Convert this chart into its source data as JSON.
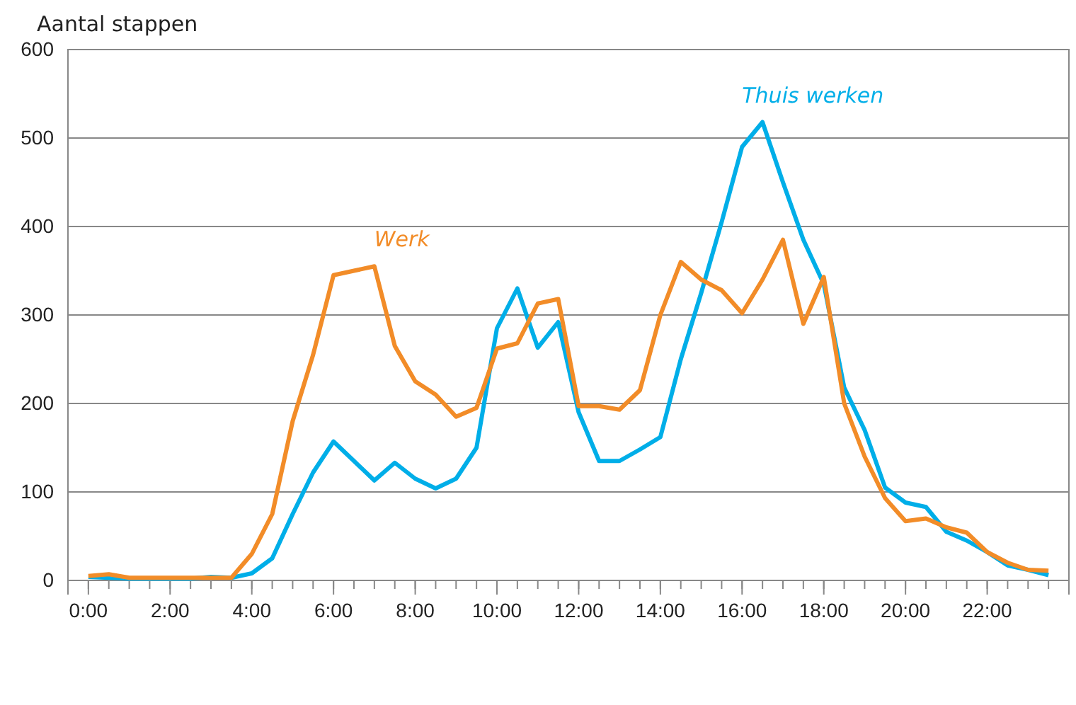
{
  "chart_data": {
    "type": "line",
    "ylabel": "Aantal stappen",
    "x": [
      0,
      0.5,
      1,
      1.5,
      2,
      2.5,
      3,
      3.5,
      4,
      4.5,
      5,
      5.5,
      6,
      6.5,
      7,
      7.5,
      8,
      8.5,
      9,
      9.5,
      10,
      10.5,
      11,
      11.5,
      12,
      12.5,
      13,
      13.5,
      14,
      14.5,
      15,
      15.5,
      16,
      16.5,
      17,
      17.5,
      18,
      18.5,
      19,
      19.5,
      20,
      20.5,
      21,
      21.5,
      22,
      22.5,
      23,
      23.5
    ],
    "series": [
      {
        "name": "Thuis werken",
        "color": "#00aee8",
        "values": [
          4,
          3,
          2,
          2,
          2,
          2,
          4,
          3,
          8,
          25,
          75,
          122,
          157,
          135,
          113,
          133,
          115,
          104,
          115,
          150,
          285,
          330,
          263,
          292,
          190,
          135,
          135,
          148,
          162,
          250,
          325,
          405,
          490,
          518,
          450,
          385,
          335,
          218,
          170,
          105,
          88,
          83,
          55,
          45,
          32,
          17,
          12,
          6
        ]
      },
      {
        "name": "Werk",
        "color": "#f28c28",
        "values": [
          5,
          7,
          3,
          3,
          3,
          3,
          3,
          3,
          30,
          75,
          180,
          255,
          345,
          350,
          355,
          265,
          225,
          210,
          185,
          195,
          262,
          268,
          313,
          318,
          197,
          197,
          193,
          215,
          300,
          360,
          340,
          328,
          302,
          340,
          385,
          290,
          343,
          200,
          140,
          93,
          67,
          70,
          60,
          54,
          32,
          20,
          12,
          11
        ]
      }
    ],
    "xlim": [
      -0.5,
      24
    ],
    "xticks": [
      {
        "value": 0,
        "label": "0:00"
      },
      {
        "value": 2,
        "label": "2:00"
      },
      {
        "value": 4,
        "label": "4:00"
      },
      {
        "value": 6,
        "label": "6:00"
      },
      {
        "value": 8,
        "label": "8:00"
      },
      {
        "value": 10,
        "label": "10:00"
      },
      {
        "value": 12,
        "label": "12:00"
      },
      {
        "value": 14,
        "label": "14:00"
      },
      {
        "value": 16,
        "label": "16:00"
      },
      {
        "value": 18,
        "label": "18:00"
      },
      {
        "value": 20,
        "label": "20:00"
      },
      {
        "value": 22,
        "label": "22:00"
      }
    ],
    "ylim": [
      0,
      600
    ],
    "yticks": [
      0,
      100,
      200,
      300,
      400,
      500,
      600
    ],
    "grid": "y",
    "legend": false,
    "marker": "none",
    "line_style": "solid"
  }
}
